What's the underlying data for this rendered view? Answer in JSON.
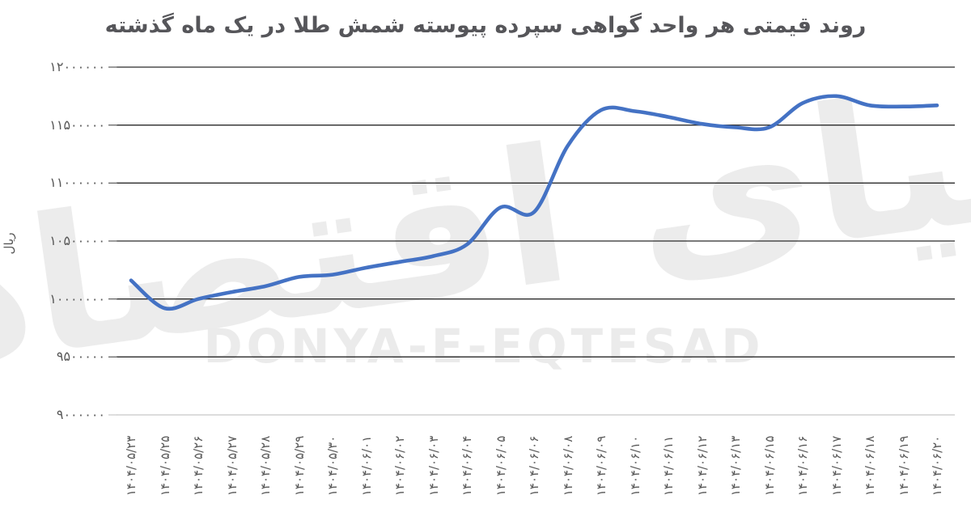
{
  "chart_data": {
    "type": "line",
    "title": "روند قیمتی هر واحد گواهی سپرده پیوسته شمش طلا در یک ماه گذشته",
    "xlabel": "",
    "ylabel": "ریال",
    "categories": [
      "۱۴۰۴/۰۵/۲۳",
      "۱۴۰۴/۰۵/۲۵",
      "۱۴۰۴/۰۵/۲۶",
      "۱۴۰۴/۰۵/۲۷",
      "۱۴۰۴/۰۵/۲۸",
      "۱۴۰۴/۰۵/۲۹",
      "۱۴۰۴/۰۵/۳۰",
      "۱۴۰۴/۰۶/۰۱",
      "۱۴۰۴/۰۶/۰۲",
      "۱۴۰۴/۰۶/۰۳",
      "۱۴۰۴/۰۶/۰۴",
      "۱۴۰۴/۰۶/۰۵",
      "۱۴۰۴/۰۶/۰۶",
      "۱۴۰۴/۰۶/۰۸",
      "۱۴۰۴/۰۶/۰۹",
      "۱۴۰۴/۰۶/۱۰",
      "۱۴۰۴/۰۶/۱۱",
      "۱۴۰۴/۰۶/۱۲",
      "۱۴۰۴/۰۶/۱۳",
      "۱۴۰۴/۰۶/۱۵",
      "۱۴۰۴/۰۶/۱۶",
      "۱۴۰۴/۰۶/۱۷",
      "۱۴۰۴/۰۶/۱۸",
      "۱۴۰۴/۰۶/۱۹",
      "۱۴۰۴/۰۶/۲۰"
    ],
    "values": [
      10160000,
      9920000,
      10000000,
      10060000,
      10110000,
      10190000,
      10210000,
      10270000,
      10320000,
      10370000,
      10470000,
      10790000,
      10750000,
      11320000,
      11630000,
      11620000,
      11570000,
      11510000,
      11480000,
      11480000,
      11690000,
      11750000,
      11670000,
      11660000,
      11670000
    ],
    "yticks": [
      {
        "label": "۱۲۰۰۰۰۰۰",
        "value": 12000000
      },
      {
        "label": "۱۱۵۰۰۰۰۰",
        "value": 11500000
      },
      {
        "label": "۱۱۰۰۰۰۰۰",
        "value": 11000000
      },
      {
        "label": "۱۰۵۰۰۰۰۰",
        "value": 10500000
      },
      {
        "label": "۱۰۰۰۰۰۰۰",
        "value": 10000000
      },
      {
        "label": "۹۵۰۰۰۰۰",
        "value": 9500000
      },
      {
        "label": "۹۰۰۰۰۰۰",
        "value": 9000000
      }
    ],
    "ylim": [
      9000000,
      12000000
    ],
    "grid": "horizontal",
    "legend": "none",
    "line_color": "#4472C4",
    "grid_color_major": "#2b2b2b",
    "grid_color_baseline": "#c8c8c8",
    "line_smooth": true
  },
  "watermarks": {
    "fa": "دنیای اقتصاد",
    "en": "DONYA-E-EQTESAD"
  }
}
